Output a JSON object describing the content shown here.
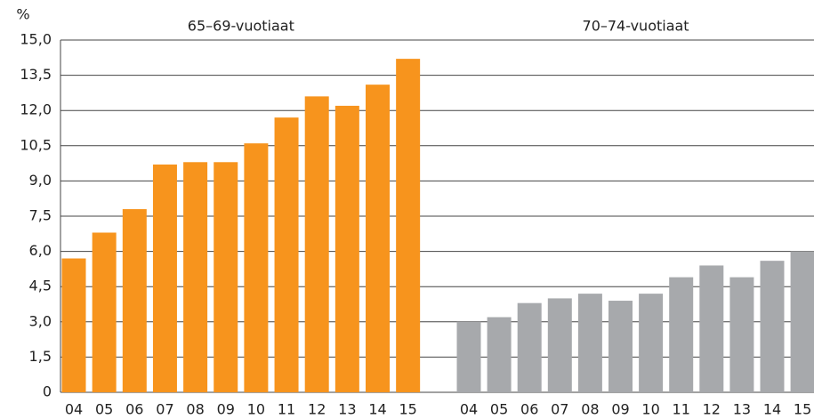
{
  "chart_data": {
    "type": "bar",
    "y_label": "%",
    "categories": [
      "04",
      "05",
      "06",
      "07",
      "08",
      "09",
      "10",
      "11",
      "12",
      "13",
      "14",
      "15"
    ],
    "series": [
      {
        "name": "65–69-vuotiaat",
        "color": "#f7941d",
        "values": [
          5.7,
          6.8,
          7.8,
          9.7,
          9.8,
          9.8,
          10.6,
          11.7,
          12.6,
          12.2,
          13.1,
          14.2
        ]
      },
      {
        "name": "70–74-vuotiaat",
        "color": "#a7a9ac",
        "values": [
          3.0,
          3.2,
          3.8,
          4.0,
          4.2,
          3.9,
          4.2,
          4.9,
          5.4,
          4.9,
          5.6,
          6.0
        ]
      }
    ],
    "ylim": [
      0,
      15
    ],
    "yticks": [
      0,
      {
        "value": 1.5,
        "label": "1,5"
      },
      {
        "value": 3,
        "label": "3,0"
      },
      {
        "value": 4.5,
        "label": "4,5"
      },
      {
        "value": 6,
        "label": "6,0"
      },
      {
        "value": 7.5,
        "label": "7,5"
      },
      {
        "value": 9,
        "label": "9,0"
      },
      {
        "value": 10.5,
        "label": "10,5"
      },
      {
        "value": 12,
        "label": "12,0"
      },
      {
        "value": 13.5,
        "label": "13,5"
      },
      {
        "value": 15,
        "label": "15,0"
      }
    ],
    "grid": true
  }
}
